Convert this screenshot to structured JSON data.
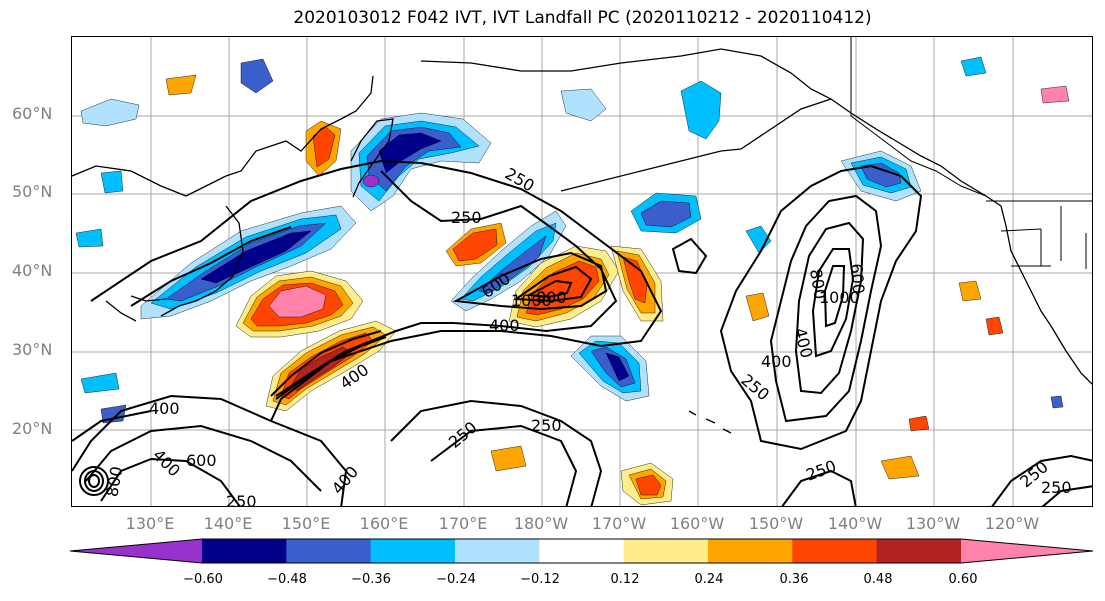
{
  "title": "2020103012 F042 IVT, IVT Landfall PC (2020110212 - 2020110412)",
  "lat_labels": [
    "60°N",
    "50°N",
    "40°N",
    "30°N",
    "20°N"
  ],
  "lon_labels": [
    "130°E",
    "140°E",
    "150°E",
    "160°E",
    "170°E",
    "180°W",
    "170°W",
    "160°W",
    "150°W",
    "140°W",
    "130°W",
    "120°W"
  ],
  "colorbar": {
    "ticks": [
      "−0.60",
      "−0.48",
      "−0.36",
      "−0.24",
      "−0.12",
      "0.12",
      "0.24",
      "0.36",
      "0.48",
      "0.60"
    ],
    "colors": [
      "#9932cc",
      "#00008b",
      "#3a5fcd",
      "#00bfff",
      "#b0e2ff",
      "#ffffff",
      "#ffec8b",
      "#ffa500",
      "#ff4500",
      "#b22222",
      "#ff82ab"
    ]
  },
  "contour_labels": [
    "250",
    "250",
    "400",
    "600",
    "1000",
    "800",
    "400",
    "400",
    "250",
    "600",
    "1000",
    "800",
    "400",
    "400",
    "250",
    "250",
    "400",
    "400",
    "600",
    "800",
    "250",
    "250",
    "250",
    "250"
  ],
  "colors": {
    "contour": "#000000",
    "grid": "#a9a9a9",
    "coast": "#000000",
    "axis_text": "#808080"
  }
}
